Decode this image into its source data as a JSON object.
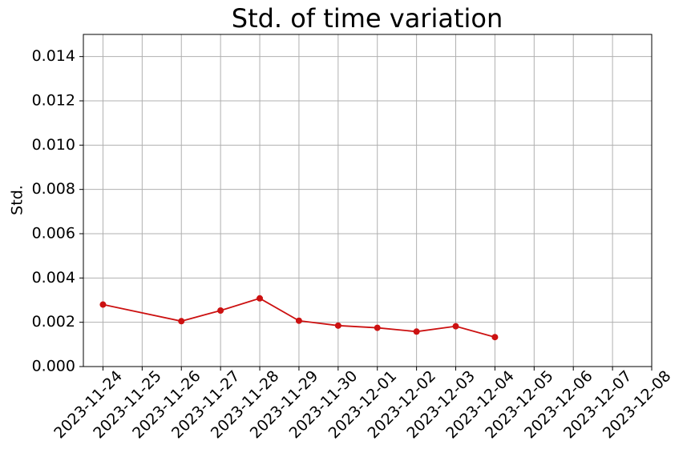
{
  "chart_data": {
    "type": "line",
    "title": "Std. of time variation",
    "y_label": "Std.",
    "x": [
      "2023-11-24",
      "2023-11-26",
      "2023-11-27",
      "2023-11-28",
      "2023-11-29",
      "2023-11-30",
      "2023-12-01",
      "2023-12-02",
      "2023-12-03",
      "2023-12-04"
    ],
    "series": [
      {
        "name": "Std.",
        "color": "#cc1111",
        "values": [
          0.0028,
          0.00205,
          0.00253,
          0.00308,
          0.00207,
          0.00185,
          0.00175,
          0.00158,
          0.00182,
          0.00133
        ]
      }
    ],
    "xlim": [
      "2023-11-23T12:00:00Z",
      "2023-12-08T00:00:00Z"
    ],
    "xticks": [
      "2023-11-24",
      "2023-11-25",
      "2023-11-26",
      "2023-11-27",
      "2023-11-28",
      "2023-11-29",
      "2023-11-30",
      "2023-12-01",
      "2023-12-02",
      "2023-12-03",
      "2023-12-04",
      "2023-12-05",
      "2023-12-06",
      "2023-12-07",
      "2023-12-08"
    ],
    "ylim": [
      0,
      0.015
    ],
    "yticks": [
      {
        "value": 0,
        "label": "0.000"
      },
      {
        "value": 0.002,
        "label": "0.002"
      },
      {
        "value": 0.004,
        "label": "0.004"
      },
      {
        "value": 0.006,
        "label": "0.006"
      },
      {
        "value": 0.008,
        "label": "0.008"
      },
      {
        "value": 0.01,
        "label": "0.010"
      },
      {
        "value": 0.012,
        "label": "0.012"
      },
      {
        "value": 0.014,
        "label": "0.014"
      }
    ],
    "grid": true
  }
}
